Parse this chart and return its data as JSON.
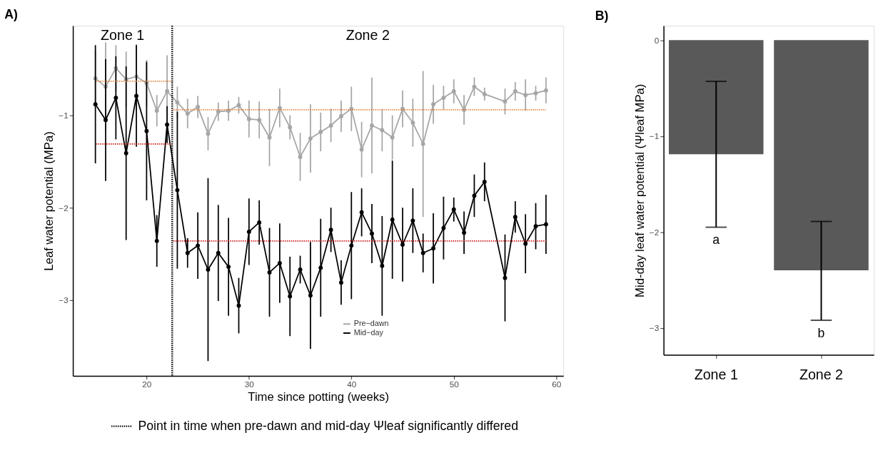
{
  "chart_data": [
    {
      "type": "line",
      "title": "A)",
      "xlabel": "Time since potting (weeks)",
      "ylabel": "Leaf water potential (MPa)",
      "x": [
        15,
        16,
        17,
        18,
        19,
        20,
        21,
        22,
        23,
        24,
        25,
        26,
        27,
        28,
        29,
        30,
        31,
        32,
        33,
        34,
        35,
        36,
        37,
        38,
        39,
        40,
        41,
        42,
        43,
        44,
        45,
        46,
        47,
        48,
        49,
        50,
        51,
        52,
        53,
        55,
        56,
        57,
        58,
        59
      ],
      "series": [
        {
          "name": "Pre−dawn",
          "color": "#a6a6a6",
          "values": [
            -0.6,
            -0.69,
            -0.49,
            -0.61,
            -0.58,
            -0.65,
            -0.95,
            -0.74,
            -0.86,
            -0.98,
            -0.91,
            -1.2,
            -0.96,
            -0.95,
            -0.89,
            -1.04,
            -1.05,
            -1.24,
            -0.92,
            -1.13,
            -1.45,
            -1.25,
            -1.18,
            -1.11,
            -1.01,
            -0.93,
            -1.37,
            -1.11,
            -1.16,
            -1.24,
            -0.93,
            -1.08,
            -1.31,
            -0.88,
            -0.81,
            -0.74,
            -0.94,
            -0.69,
            -0.77,
            -0.85,
            -0.74,
            -0.78,
            -0.76,
            -0.73
          ],
          "errors": [
            0.3,
            0.48,
            0.25,
            0.3,
            0.35,
            0.25,
            0.17,
            0.39,
            0.17,
            0.16,
            0.12,
            0.18,
            0.1,
            0.11,
            0.09,
            0.2,
            0.2,
            0.31,
            0.21,
            0.13,
            0.26,
            0.37,
            0.21,
            0.18,
            0.17,
            0.24,
            0.3,
            0.52,
            0.23,
            0.24,
            0.2,
            0.26,
            0.79,
            0.21,
            0.13,
            0.13,
            0.16,
            0.1,
            0.07,
            0.14,
            0.1,
            0.17,
            0.08,
            0.14
          ]
        },
        {
          "name": "Mid−day",
          "color": "#000000",
          "values": [
            -0.88,
            -1.05,
            -0.81,
            -1.41,
            -0.79,
            -1.17,
            -2.36,
            -1.1,
            -1.81,
            -2.49,
            -2.41,
            -2.67,
            -2.49,
            -2.64,
            -3.06,
            -2.26,
            -2.16,
            -2.7,
            -2.6,
            -2.96,
            -2.67,
            -2.95,
            -2.65,
            -2.24,
            -2.81,
            -2.41,
            -2.05,
            -2.28,
            -2.63,
            -2.13,
            -2.4,
            -2.14,
            -2.49,
            -2.44,
            -2.22,
            -2.02,
            -2.27,
            -1.87,
            -1.72,
            -2.76,
            -2.1,
            -2.39,
            -2.2,
            -2.18
          ],
          "errors": [
            0.64,
            0.66,
            0.45,
            0.94,
            0.55,
            0.75,
            0.28,
            0.2,
            0.85,
            0.16,
            0.36,
            0.99,
            0.52,
            0.53,
            0.3,
            0.36,
            0.24,
            0.48,
            0.43,
            0.43,
            0.15,
            0.58,
            0.53,
            0.24,
            0.24,
            0.58,
            0.26,
            0.32,
            0.54,
            0.64,
            0.4,
            0.35,
            0.21,
            0.38,
            0.34,
            0.13,
            0.23,
            0.23,
            0.21,
            0.47,
            0.17,
            0.32,
            0.25,
            0.32
          ]
        },
        {
          "type": "line",
          "color": "#e8823a",
          "line_style": "dotted",
          "marker": "none",
          "x": [
            15,
            22.5
          ],
          "values": [
            -0.63,
            -0.63
          ]
        },
        {
          "type": "line",
          "color": "#e8823a",
          "line_style": "dotted",
          "marker": "none",
          "x": [
            22.5,
            59
          ],
          "values": [
            -0.94,
            -0.94
          ]
        },
        {
          "type": "line",
          "color": "#cc1111",
          "line_style": "dotted",
          "marker": "none",
          "x": [
            15,
            22.5
          ],
          "values": [
            -1.31,
            -1.31
          ]
        },
        {
          "type": "line",
          "color": "#cc1111",
          "line_style": "dotted",
          "marker": "none",
          "x": [
            22.5,
            59
          ],
          "values": [
            -2.36,
            -2.36
          ]
        }
      ],
      "ref_lines": [
        {
          "axis": "x",
          "value": 22.5,
          "label": "Point in time when pre-dawn and mid-day Ψleaf significantly differed",
          "color": "#000000",
          "line_style": "dotted"
        }
      ],
      "annotations": [
        "Zone 1",
        "Zone 2"
      ],
      "xlim": [
        12.8,
        60.7
      ],
      "xticks": [
        20,
        30,
        40,
        50,
        60
      ],
      "ylim": [
        -3.82,
        -0.03
      ],
      "yticks": [
        -1,
        -2,
        -3
      ],
      "legend": "bottom",
      "marker": "circle",
      "line_style": "solid",
      "grid": false
    },
    {
      "type": "bar",
      "title": "B)",
      "ylabel": "Mid-day leaf water potential (Ψleaf MPa)",
      "categories": [
        "Zone 1",
        "Zone 2"
      ],
      "values": [
        -1.19,
        -2.4
      ],
      "colors": [
        "#595959",
        "#595959"
      ],
      "errors": [
        [
          -1.95,
          -0.43
        ],
        [
          -2.92,
          -1.89
        ]
      ],
      "annotations": [
        "a",
        "b"
      ],
      "ylim": [
        -3.28,
        0.15
      ],
      "yticks": [
        0,
        -1,
        -2,
        -3
      ],
      "grid": false
    }
  ]
}
